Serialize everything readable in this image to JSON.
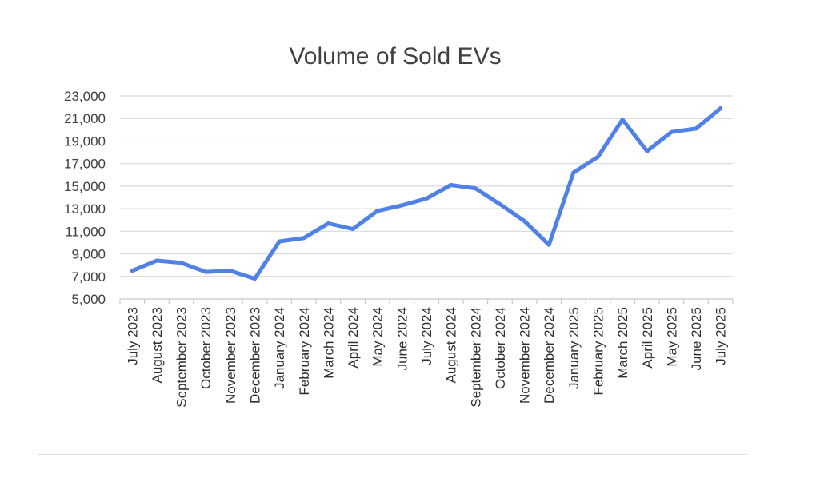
{
  "chart_data": {
    "type": "line",
    "title": "Volume of Sold EVs",
    "xlabel": "",
    "ylabel": "",
    "ylim": [
      5000,
      23000
    ],
    "yticks": [
      "5,000",
      "7,000",
      "9,000",
      "11,000",
      "13,000",
      "15,000",
      "17,000",
      "19,000",
      "21,000",
      "23,000"
    ],
    "ytick_values": [
      5000,
      7000,
      9000,
      11000,
      13000,
      15000,
      17000,
      19000,
      21000,
      23000
    ],
    "grid": true,
    "legend": "none",
    "categories": [
      "July 2023",
      "August 2023",
      "September 2023",
      "October 2023",
      "November 2023",
      "December 2023",
      "January 2024",
      "February 2024",
      "March 2024",
      "April 2024",
      "May 2024",
      "June 2024",
      "July 2024",
      "August 2024",
      "September 2024",
      "October 2024",
      "November 2024",
      "December 2024",
      "January 2025",
      "February 2025",
      "March 2025",
      "April 2025",
      "May 2025",
      "June 2025",
      "July 2025"
    ],
    "series": [
      {
        "color": "#4f81e6",
        "values": [
          7500,
          8400,
          8200,
          7400,
          7500,
          6800,
          10100,
          10400,
          11700,
          11200,
          12800,
          13300,
          13900,
          15100,
          14800,
          13400,
          11900,
          9800,
          16200,
          17600,
          20900,
          18100,
          19800,
          20100,
          21900
        ]
      }
    ]
  }
}
